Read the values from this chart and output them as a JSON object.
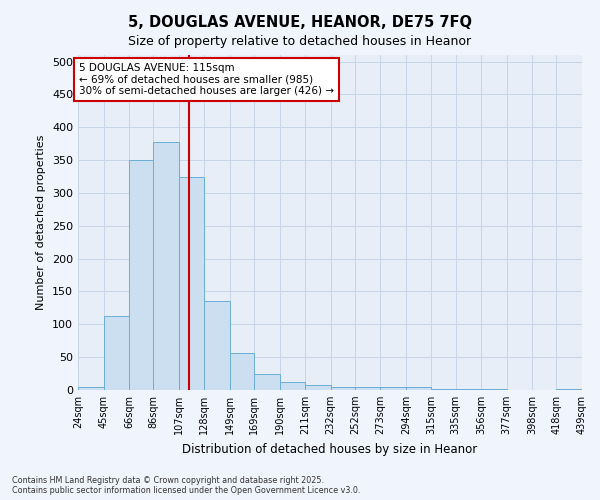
{
  "title": "5, DOUGLAS AVENUE, HEANOR, DE75 7FQ",
  "subtitle": "Size of property relative to detached houses in Heanor",
  "xlabel": "Distribution of detached houses by size in Heanor",
  "ylabel": "Number of detached properties",
  "footer_line1": "Contains HM Land Registry data © Crown copyright and database right 2025.",
  "footer_line2": "Contains public sector information licensed under the Open Government Licence v3.0.",
  "bin_edges": [
    24,
    45,
    66,
    86,
    107,
    128,
    149,
    169,
    190,
    211,
    232,
    252,
    273,
    294,
    315,
    335,
    356,
    377,
    398,
    418,
    439
  ],
  "bar_heights": [
    5,
    112,
    350,
    378,
    325,
    135,
    57,
    25,
    12,
    8,
    5,
    4,
    4,
    4,
    1,
    1,
    1,
    0,
    0,
    2
  ],
  "bar_color": "#ccdff0",
  "bar_edge_color": "#6aaed6",
  "vline_x": 115,
  "vline_color": "#cc0000",
  "annotation_title": "5 DOUGLAS AVENUE: 115sqm",
  "annotation_line1": "← 69% of detached houses are smaller (985)",
  "annotation_line2": "30% of semi-detached houses are larger (426) →",
  "annotation_box_color": "#cc0000",
  "ylim": [
    0,
    510
  ],
  "yticks": [
    0,
    50,
    100,
    150,
    200,
    250,
    300,
    350,
    400,
    450,
    500
  ],
  "grid_color": "#c8d4e8",
  "bg_color": "#e8eef8",
  "fig_bg_color": "#f0f4fc"
}
